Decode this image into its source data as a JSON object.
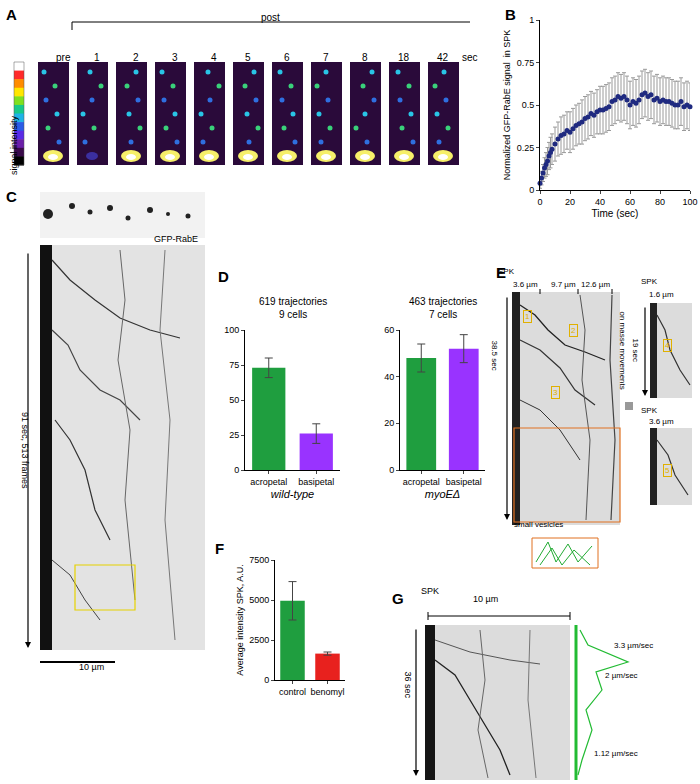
{
  "chart_data": [
    {
      "panel": "B",
      "type": "scatter",
      "marker": "circle",
      "color": "#1f2a80",
      "x": [
        0,
        1,
        2,
        3,
        4,
        5,
        6,
        7,
        8,
        10,
        12,
        14,
        16,
        18,
        20,
        22,
        24,
        26,
        28,
        30,
        32,
        34,
        36,
        38,
        40,
        42,
        44,
        46,
        48,
        50,
        52,
        54,
        56,
        58,
        60,
        62,
        64,
        66,
        68,
        70,
        72,
        74,
        76,
        78,
        80,
        82,
        84,
        86,
        88,
        90,
        92,
        94,
        96,
        98,
        100
      ],
      "values": [
        0.04,
        0.07,
        0.1,
        0.13,
        0.15,
        0.17,
        0.2,
        0.22,
        0.24,
        0.27,
        0.3,
        0.32,
        0.33,
        0.35,
        0.34,
        0.36,
        0.38,
        0.39,
        0.4,
        0.42,
        0.43,
        0.45,
        0.44,
        0.46,
        0.47,
        0.47,
        0.48,
        0.49,
        0.52,
        0.53,
        0.55,
        0.54,
        0.55,
        0.53,
        0.5,
        0.52,
        0.51,
        0.53,
        0.56,
        0.57,
        0.55,
        0.56,
        0.53,
        0.54,
        0.52,
        0.53,
        0.52,
        0.52,
        0.51,
        0.5,
        0.5,
        0.52,
        0.49,
        0.5,
        0.49
      ],
      "errors": [
        0.03,
        0.04,
        0.05,
        0.06,
        0.07,
        0.08,
        0.08,
        0.09,
        0.09,
        0.1,
        0.1,
        0.11,
        0.11,
        0.11,
        0.12,
        0.12,
        0.12,
        0.12,
        0.13,
        0.13,
        0.13,
        0.13,
        0.13,
        0.13,
        0.14,
        0.14,
        0.14,
        0.14,
        0.14,
        0.14,
        0.14,
        0.14,
        0.14,
        0.14,
        0.14,
        0.14,
        0.14,
        0.14,
        0.14,
        0.14,
        0.14,
        0.14,
        0.14,
        0.14,
        0.14,
        0.14,
        0.14,
        0.14,
        0.14,
        0.14,
        0.14,
        0.14,
        0.14,
        0.14,
        0.14
      ],
      "xlabel": "Time (sec)",
      "ylabel": "Normalized GFP-RabE signal  in SPK",
      "xlim": [
        0,
        100
      ],
      "xticks": [
        0,
        20,
        40,
        60,
        80,
        100
      ],
      "ylim": [
        0,
        1
      ],
      "yticks": [
        0,
        0.25,
        0.5,
        0.75,
        1
      ]
    },
    {
      "panel": "D",
      "type": "bar",
      "title": [
        "619 trajectories",
        "9 cells"
      ],
      "xlabel": "wild-type",
      "categories": [
        "acropetal",
        "basipetal"
      ],
      "values": [
        73,
        26
      ],
      "errors": [
        7,
        7
      ],
      "colors": [
        "#1f9e3f",
        "#9933ff"
      ],
      "ylim": [
        0,
        100
      ],
      "yticks": [
        0,
        25,
        50,
        75,
        100
      ]
    },
    {
      "type": "bar",
      "title": [
        "463 trajectories",
        "7 cells"
      ],
      "xlabel": "myoEΔ",
      "categories": [
        "acropetal",
        "basipetal"
      ],
      "values": [
        48,
        52
      ],
      "errors": [
        6,
        6
      ],
      "colors": [
        "#1f9e3f",
        "#9933ff"
      ],
      "ylim": [
        0,
        60
      ],
      "yticks": [
        0,
        20,
        40,
        60
      ]
    },
    {
      "panel": "F",
      "type": "bar",
      "ylabel": "Average intensity SPK, A.U.",
      "categories": [
        "control",
        "benomyl"
      ],
      "values": [
        4950,
        1650
      ],
      "errors": [
        1200,
        100
      ],
      "colors": [
        "#1f9e3f",
        "#e8211e"
      ],
      "ylim": [
        0,
        7500
      ],
      "yticks": [
        0,
        2500,
        5000,
        7500
      ]
    }
  ],
  "images": {
    "A": {
      "label": "A",
      "pre": "pre",
      "post": "post",
      "frames": [
        "1",
        "2",
        "3",
        "4",
        "5",
        "6",
        "7",
        "8",
        "18",
        "42"
      ],
      "unit": "sec",
      "colorbar": "signal intensity"
    },
    "C": {
      "label": "C",
      "marker": "GFP-RabE",
      "time": "91 sec, 513 frames",
      "scale": "10 µm"
    },
    "E": {
      "label": "E",
      "spk": "SPK",
      "distances": [
        "3.6 µm",
        "9.7 µm",
        "12.6 µm"
      ],
      "time": "38.5 sec",
      "events": [
        "1",
        "2",
        "3",
        "4",
        "5"
      ],
      "mass": "on masse movements",
      "small": "small vesicles",
      "inset1": {
        "spk": "SPK",
        "distance": "1.6 µm",
        "time": "19 sec"
      },
      "inset2": {
        "spk": "SPK",
        "distance": "3.6 µm"
      }
    },
    "G": {
      "label": "G",
      "spk": "SPK",
      "distance": "10 µm",
      "time": "36 sec",
      "speeds": [
        "3.3 µm/sec",
        "2 µm/sec",
        "1.12 µm/sec"
      ]
    }
  }
}
